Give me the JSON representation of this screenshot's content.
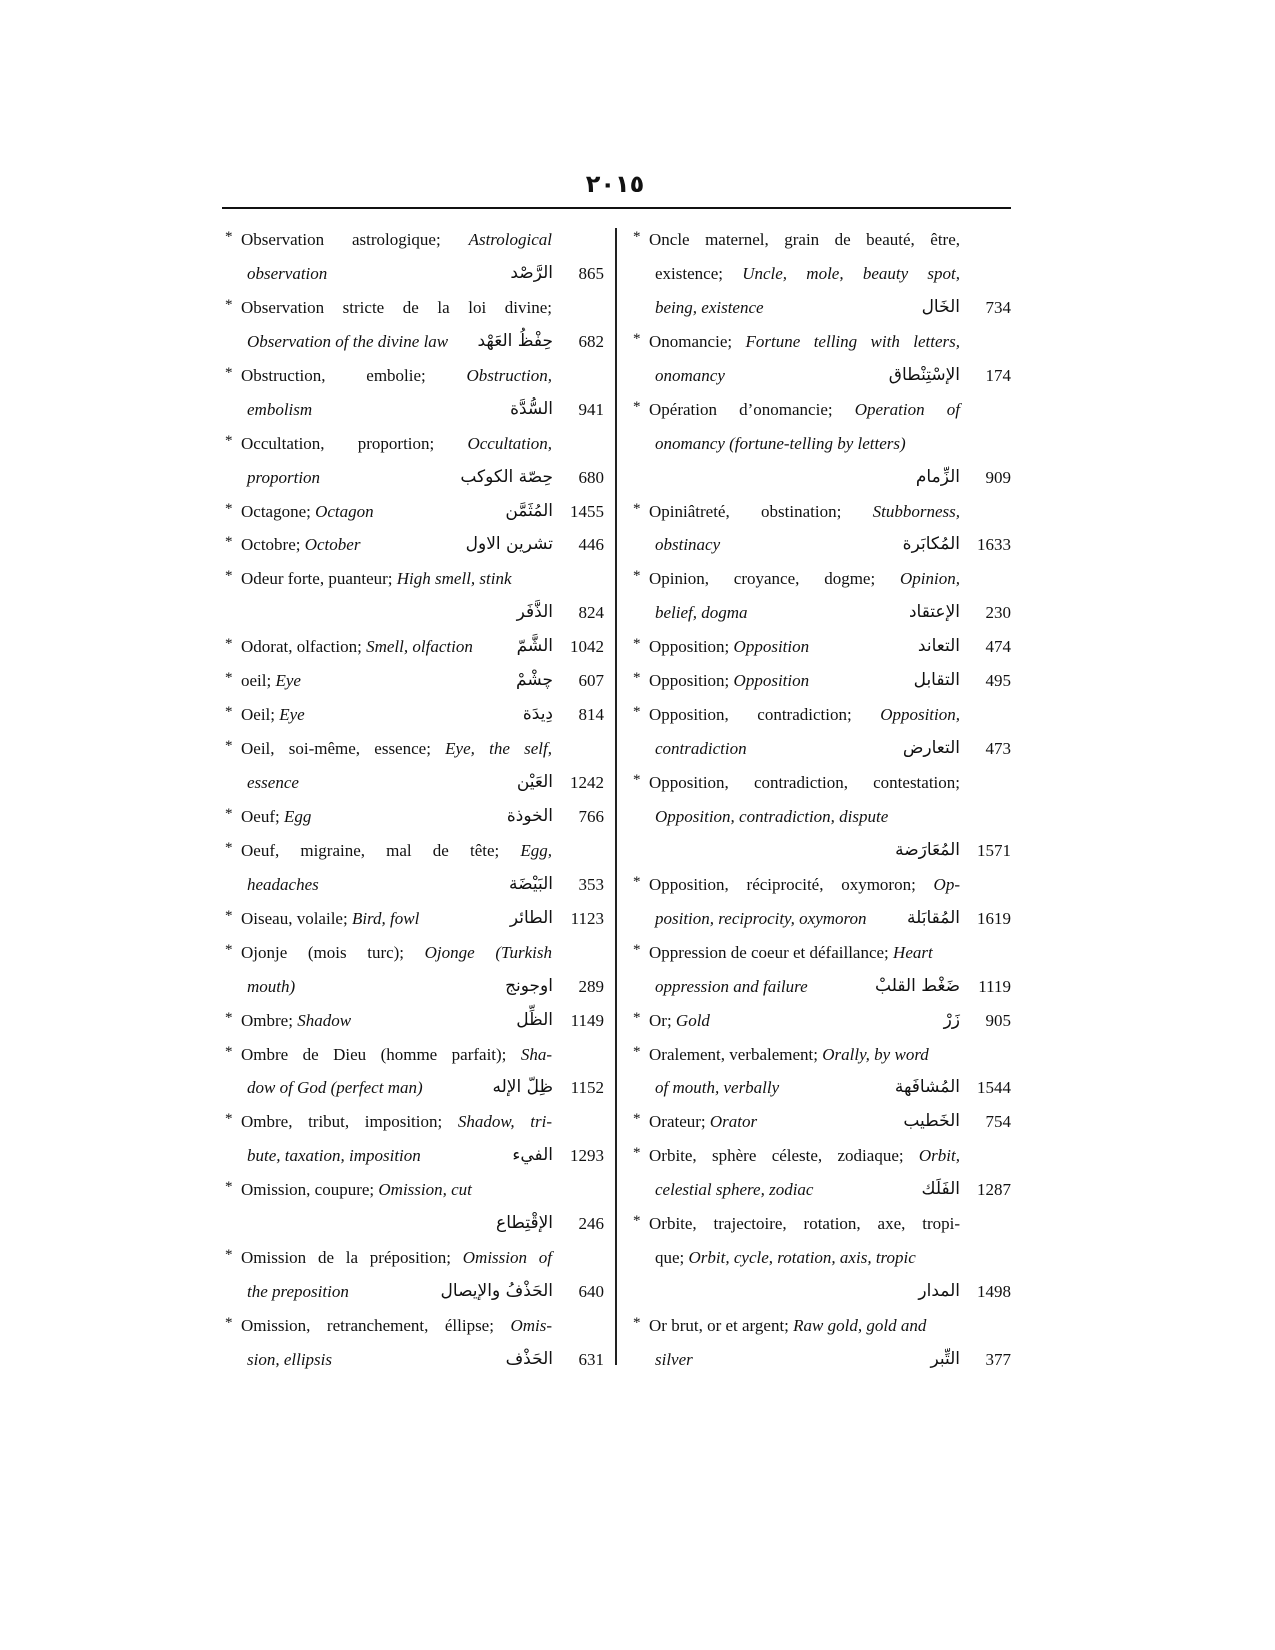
{
  "page_number": "٢٠١٥",
  "left": {
    "entries": [
      {
        "lines": [
          [
            {
              "r": "Observation astrologique; "
            },
            {
              "i": "Astrological"
            }
          ],
          [
            {
              "i": "observation"
            }
          ]
        ],
        "j": [
          true,
          false
        ],
        "ar": "الرَّصْد",
        "num": "865"
      },
      {
        "lines": [
          [
            {
              "r": "Observation stricte de la loi divine;"
            }
          ],
          [
            {
              "i": "Observation of the divine law"
            }
          ]
        ],
        "j": [
          true,
          false
        ],
        "ar": "حِفْظُ العَهْد",
        "num": "682"
      },
      {
        "lines": [
          [
            {
              "r": "Obstruction, embolie; "
            },
            {
              "i": "Obstruction,"
            }
          ],
          [
            {
              "i": "embolism"
            }
          ]
        ],
        "j": [
          true,
          false
        ],
        "ar": "السُّدَّة",
        "num": "941"
      },
      {
        "lines": [
          [
            {
              "r": "Occultation, proportion; "
            },
            {
              "i": "Occultation,"
            }
          ],
          [
            {
              "i": "proportion"
            }
          ]
        ],
        "j": [
          true,
          false
        ],
        "ar": "حِصّة الكوكب",
        "num": "680"
      },
      {
        "lines": [
          [
            {
              "r": "Octagone; "
            },
            {
              "i": "Octagon"
            }
          ]
        ],
        "j": [
          false
        ],
        "ar": "المُثَمَّن",
        "num": "1455"
      },
      {
        "lines": [
          [
            {
              "r": "Octobre; "
            },
            {
              "i": "October"
            }
          ]
        ],
        "j": [
          false
        ],
        "ar": "تشرين الاول",
        "num": "446"
      },
      {
        "lines": [
          [
            {
              "r": "Odeur forte, puanteur; "
            },
            {
              "i": "High smell, stink"
            }
          ],
          []
        ],
        "j": [
          false,
          false
        ],
        "ar": "الذَّفَر",
        "num": "824"
      },
      {
        "lines": [
          [
            {
              "r": "Odorat, olfaction; "
            },
            {
              "i": "Smell, olfaction"
            }
          ]
        ],
        "j": [
          false
        ],
        "ar": "الشَّمّ",
        "num": "1042"
      },
      {
        "lines": [
          [
            {
              "r": "oeil; "
            },
            {
              "i": "Eye"
            }
          ]
        ],
        "j": [
          false
        ],
        "ar": "چشْمْ",
        "num": "607"
      },
      {
        "lines": [
          [
            {
              "r": "Oeil; "
            },
            {
              "i": "Eye"
            }
          ]
        ],
        "j": [
          false
        ],
        "ar": "دِيدَة",
        "num": "814"
      },
      {
        "lines": [
          [
            {
              "r": "Oeil, soi-même, essence; "
            },
            {
              "i": "Eye, the self,"
            }
          ],
          [
            {
              "i": "essence"
            }
          ]
        ],
        "j": [
          true,
          false
        ],
        "ar": "العَيْن",
        "num": "1242"
      },
      {
        "lines": [
          [
            {
              "r": "Oeuf; "
            },
            {
              "i": "Egg"
            }
          ]
        ],
        "j": [
          false
        ],
        "ar": "الخوذة",
        "num": "766"
      },
      {
        "lines": [
          [
            {
              "r": "Oeuf, migraine, mal de tête; "
            },
            {
              "i": "Egg,"
            }
          ],
          [
            {
              "i": "headaches"
            }
          ]
        ],
        "j": [
          true,
          false
        ],
        "ar": "البَيْضَة",
        "num": "353"
      },
      {
        "lines": [
          [
            {
              "r": "Oiseau, volaile; "
            },
            {
              "i": "Bird, fowl"
            }
          ]
        ],
        "j": [
          false
        ],
        "ar": "الطائر",
        "num": "1123"
      },
      {
        "lines": [
          [
            {
              "r": "Ojonje (mois turc); "
            },
            {
              "i": "Ojonge (Turkish"
            }
          ],
          [
            {
              "i": "mouth)"
            }
          ]
        ],
        "j": [
          true,
          false
        ],
        "ar": "اوجونج",
        "num": "289"
      },
      {
        "lines": [
          [
            {
              "r": "Ombre; "
            },
            {
              "i": "Shadow"
            }
          ]
        ],
        "j": [
          false
        ],
        "ar": "الظِّل",
        "num": "1149"
      },
      {
        "lines": [
          [
            {
              "r": "Ombre de Dieu (homme parfait); "
            },
            {
              "i": "Sha-"
            }
          ],
          [
            {
              "i": "dow of God (perfect man)"
            }
          ]
        ],
        "j": [
          true,
          false
        ],
        "ar": "ظِلّ الإله",
        "num": "1152"
      },
      {
        "lines": [
          [
            {
              "r": "Ombre, tribut, imposition; "
            },
            {
              "i": "Shadow, tri-"
            }
          ],
          [
            {
              "i": "bute, taxation, imposition"
            }
          ]
        ],
        "j": [
          true,
          false
        ],
        "ar": "الفيء",
        "num": "1293"
      },
      {
        "lines": [
          [
            {
              "r": "Omission, coupure; "
            },
            {
              "i": "Omission, cut"
            }
          ],
          []
        ],
        "j": [
          false,
          false
        ],
        "ar": "الإقْتِطاع",
        "num": "246"
      },
      {
        "lines": [
          [
            {
              "r": "Omission de la préposition; "
            },
            {
              "i": "Omission of"
            }
          ],
          [
            {
              "i": "the preposition"
            }
          ]
        ],
        "j": [
          true,
          false
        ],
        "ar": "الحَذْفُ والإيصال",
        "num": "640"
      },
      {
        "lines": [
          [
            {
              "r": "Omission, retranchement, éllipse; "
            },
            {
              "i": "Omis-"
            }
          ],
          [
            {
              "i": "sion, ellipsis"
            }
          ]
        ],
        "j": [
          true,
          false
        ],
        "ar": "الحَذْف",
        "num": "631"
      }
    ]
  },
  "right": {
    "entries": [
      {
        "lines": [
          [
            {
              "r": "Oncle maternel, grain de beauté, être,"
            }
          ],
          [
            {
              "r": "existence; "
            },
            {
              "i": "Uncle, mole, beauty spot,"
            }
          ],
          [
            {
              "i": "being, existence"
            }
          ]
        ],
        "j": [
          true,
          true,
          false
        ],
        "ar": "الخَال",
        "num": "734"
      },
      {
        "lines": [
          [
            {
              "r": "Onomancie; "
            },
            {
              "i": "Fortune telling with letters,"
            }
          ],
          [
            {
              "i": "onomancy"
            }
          ]
        ],
        "j": [
          true,
          false
        ],
        "ar": "الإسْتِنْطاق",
        "num": "174"
      },
      {
        "lines": [
          [
            {
              "r": "Opération d’onomancie; "
            },
            {
              "i": "Operation of"
            }
          ],
          [
            {
              "i": "onomancy (fortune-telling by letters)"
            }
          ],
          []
        ],
        "j": [
          true,
          false,
          false
        ],
        "ar": "الزِّمام",
        "num": "909"
      },
      {
        "lines": [
          [
            {
              "r": "Opiniâtreté, obstination; "
            },
            {
              "i": "Stubborness,"
            }
          ],
          [
            {
              "i": "obstinacy"
            }
          ]
        ],
        "j": [
          true,
          false
        ],
        "ar": "المُكابَرة",
        "num": "1633"
      },
      {
        "lines": [
          [
            {
              "r": "Opinion, croyance, dogme; "
            },
            {
              "i": "Opinion,"
            }
          ],
          [
            {
              "i": "belief, dogma"
            }
          ]
        ],
        "j": [
          true,
          false
        ],
        "ar": "الإعتقاد",
        "num": "230"
      },
      {
        "lines": [
          [
            {
              "r": "Opposition; "
            },
            {
              "i": "Opposition"
            }
          ]
        ],
        "j": [
          false
        ],
        "ar": "التعاند",
        "num": "474"
      },
      {
        "lines": [
          [
            {
              "r": "Opposition; "
            },
            {
              "i": "Opposition"
            }
          ]
        ],
        "j": [
          false
        ],
        "ar": "التقابل",
        "num": "495"
      },
      {
        "lines": [
          [
            {
              "r": "Opposition, contradiction; "
            },
            {
              "i": "Opposition,"
            }
          ],
          [
            {
              "i": "contradiction"
            }
          ]
        ],
        "j": [
          true,
          false
        ],
        "ar": "التعارض",
        "num": "473"
      },
      {
        "lines": [
          [
            {
              "r": "Opposition, contradiction, contestation;"
            }
          ],
          [
            {
              "i": "Opposition, contradiction, dispute"
            }
          ],
          []
        ],
        "j": [
          true,
          false,
          false
        ],
        "ar": "المُعَارَضة",
        "num": "1571"
      },
      {
        "lines": [
          [
            {
              "r": "Opposition, réciprocité, oxymoron; "
            },
            {
              "i": "Op-"
            }
          ],
          [
            {
              "i": "position, reciprocity, oxymoron"
            }
          ]
        ],
        "j": [
          true,
          false
        ],
        "ar": "المُقابَلة",
        "num": "1619"
      },
      {
        "lines": [
          [
            {
              "r": "Oppression de coeur et défaillance; "
            },
            {
              "i": "Heart"
            }
          ],
          [
            {
              "i": "oppression and failure"
            }
          ]
        ],
        "j": [
          false,
          false
        ],
        "ar": "ضَغْط القلبْ",
        "num": "1119"
      },
      {
        "lines": [
          [
            {
              "r": "Or; "
            },
            {
              "i": "Gold"
            }
          ]
        ],
        "j": [
          false
        ],
        "ar": "زَرْ",
        "num": "905"
      },
      {
        "lines": [
          [
            {
              "r": "Oralement, verbalement; "
            },
            {
              "i": "Orally, by word"
            }
          ],
          [
            {
              "i": "of mouth, verbally"
            }
          ]
        ],
        "j": [
          false,
          false
        ],
        "ar": "المُشافَهة",
        "num": "1544"
      },
      {
        "lines": [
          [
            {
              "r": "Orateur; "
            },
            {
              "i": "Orator"
            }
          ]
        ],
        "j": [
          false
        ],
        "ar": "الخَطيب",
        "num": "754"
      },
      {
        "lines": [
          [
            {
              "r": "Orbite, sphère céleste, zodiaque; "
            },
            {
              "i": "Orbit,"
            }
          ],
          [
            {
              "i": "celestial sphere, zodiac"
            }
          ]
        ],
        "j": [
          true,
          false
        ],
        "ar": "الفَلَك",
        "num": "1287"
      },
      {
        "lines": [
          [
            {
              "r": "Orbite, trajectoire, rotation, axe, tropi-"
            }
          ],
          [
            {
              "r": "que; "
            },
            {
              "i": "Orbit, cycle, rotation, axis, tropic"
            }
          ],
          []
        ],
        "j": [
          true,
          false,
          false
        ],
        "ar": "المدار",
        "num": "1498"
      },
      {
        "lines": [
          [
            {
              "r": "Or brut, or et argent; "
            },
            {
              "i": "Raw gold, gold and"
            }
          ],
          [
            {
              "i": "silver"
            }
          ]
        ],
        "j": [
          false,
          false
        ],
        "ar": "التِّبر",
        "num": "377"
      }
    ]
  }
}
